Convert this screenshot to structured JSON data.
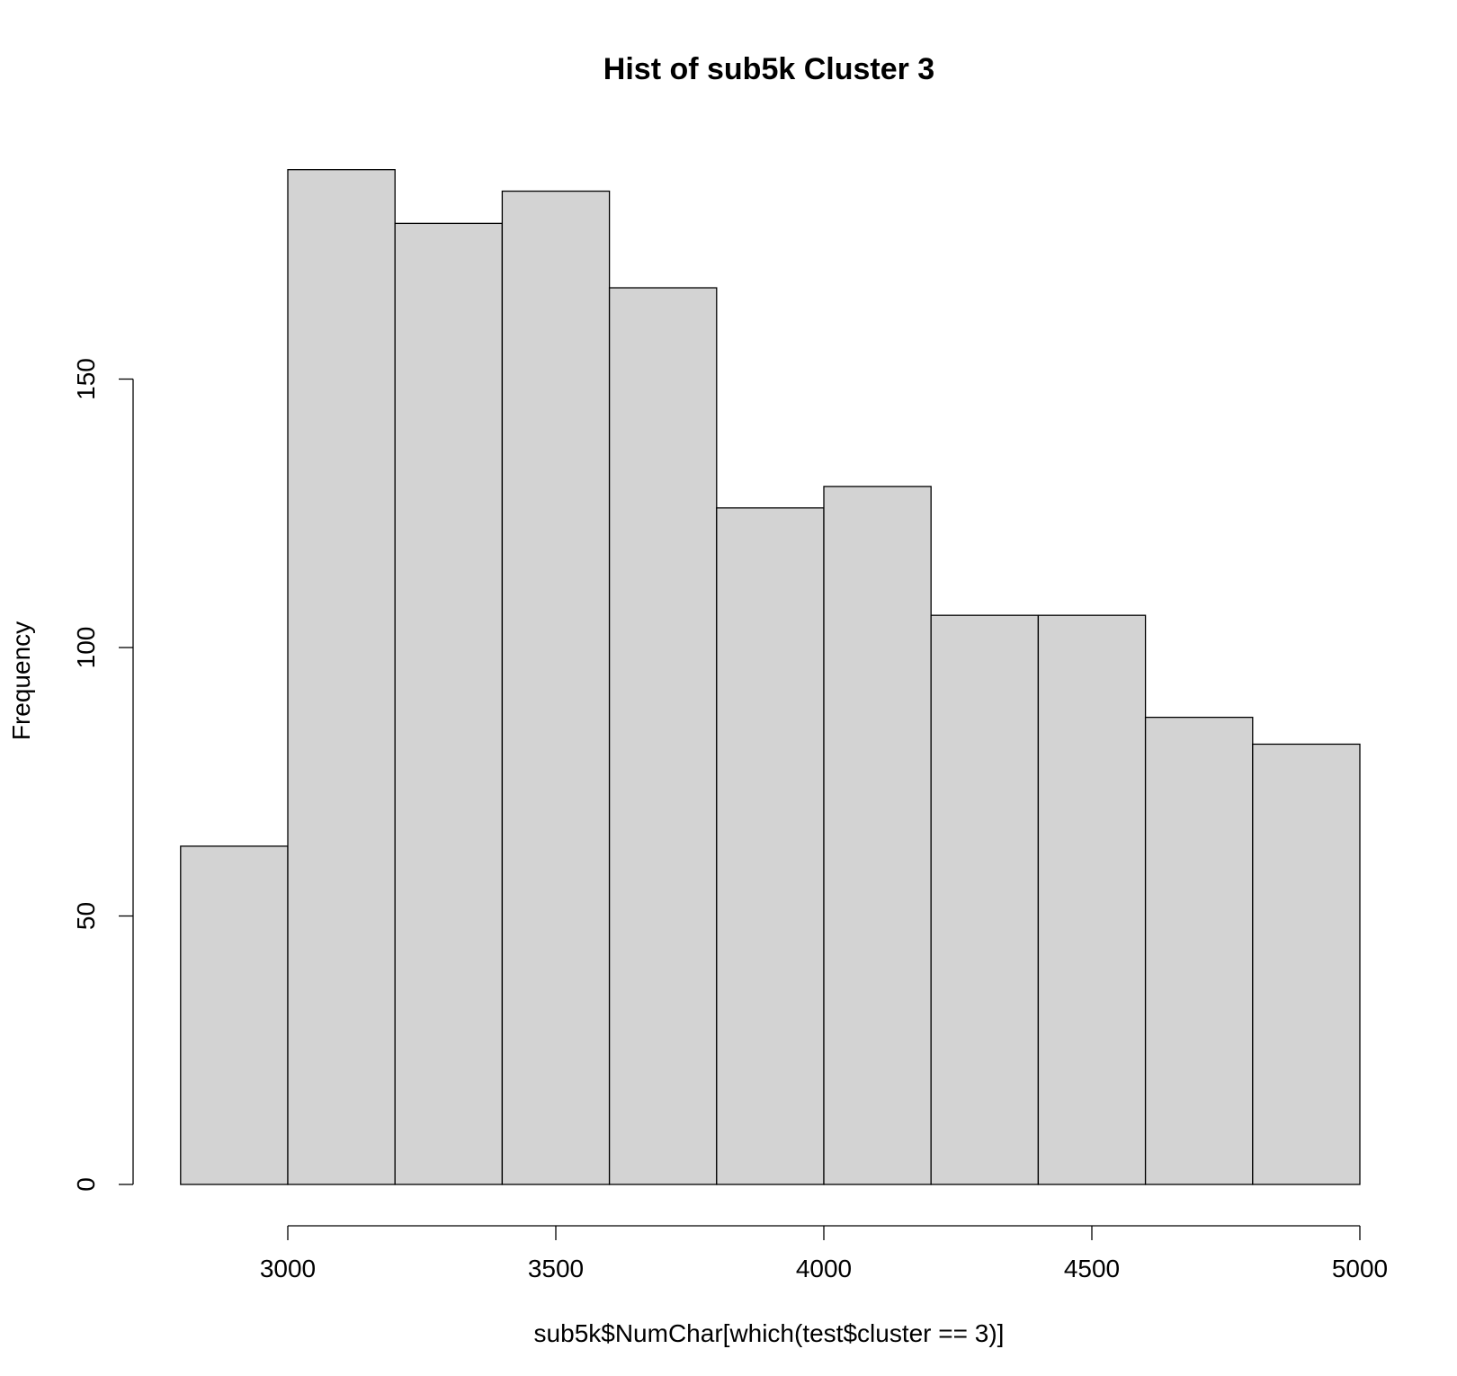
{
  "chart_data": {
    "type": "bar",
    "subtype": "histogram",
    "title": "Hist of sub5k Cluster 3",
    "xlabel": "sub5k$NumChar[which(test$cluster == 3)]",
    "ylabel": "Frequency",
    "bins": [
      {
        "start": 2800,
        "end": 3000,
        "count": 63
      },
      {
        "start": 3000,
        "end": 3200,
        "count": 189
      },
      {
        "start": 3200,
        "end": 3400,
        "count": 179
      },
      {
        "start": 3400,
        "end": 3600,
        "count": 185
      },
      {
        "start": 3600,
        "end": 3800,
        "count": 167
      },
      {
        "start": 3800,
        "end": 4000,
        "count": 126
      },
      {
        "start": 4000,
        "end": 4200,
        "count": 130
      },
      {
        "start": 4200,
        "end": 4400,
        "count": 106
      },
      {
        "start": 4400,
        "end": 4600,
        "count": 106
      },
      {
        "start": 4600,
        "end": 4800,
        "count": 87
      },
      {
        "start": 4800,
        "end": 5000,
        "count": 82
      }
    ],
    "xlim": [
      2800,
      5000
    ],
    "ylim": [
      0,
      189
    ],
    "x_ticks": [
      3000,
      3500,
      4000,
      4500,
      5000
    ],
    "y_ticks": [
      0,
      50,
      100,
      150
    ],
    "bar_color": "#d3d3d3",
    "border_color": "#000000",
    "grid": false,
    "legend": "none"
  }
}
